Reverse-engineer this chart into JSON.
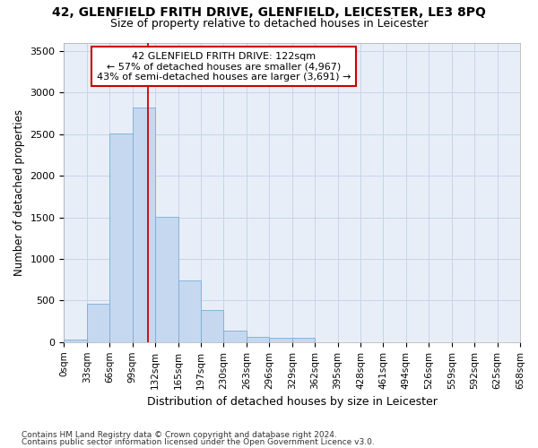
{
  "title": "42, GLENFIELD FRITH DRIVE, GLENFIELD, LEICESTER, LE3 8PQ",
  "subtitle": "Size of property relative to detached houses in Leicester",
  "xlabel": "Distribution of detached houses by size in Leicester",
  "ylabel": "Number of detached properties",
  "footnote1": "Contains HM Land Registry data © Crown copyright and database right 2024.",
  "footnote2": "Contains public sector information licensed under the Open Government Licence v3.0.",
  "bin_labels": [
    "0sqm",
    "33sqm",
    "66sqm",
    "99sqm",
    "132sqm",
    "165sqm",
    "197sqm",
    "230sqm",
    "263sqm",
    "296sqm",
    "329sqm",
    "362sqm",
    "395sqm",
    "428sqm",
    "461sqm",
    "494sqm",
    "526sqm",
    "559sqm",
    "592sqm",
    "625sqm",
    "658sqm"
  ],
  "bar_values": [
    25,
    465,
    2505,
    2820,
    1510,
    745,
    390,
    135,
    65,
    50,
    50,
    0,
    0,
    0,
    0,
    0,
    0,
    0,
    0,
    0
  ],
  "bar_color": "#c5d8f0",
  "bar_edge_color": "#7aadd4",
  "grid_color": "#c8d4e8",
  "background_color": "#e8eef8",
  "vline_color": "#cc0000",
  "vline_position": 3.7,
  "property_label": "42 GLENFIELD FRITH DRIVE: 122sqm",
  "annotation_line1": "← 57% of detached houses are smaller (4,967)",
  "annotation_line2": "43% of semi-detached houses are larger (3,691) →",
  "ylim": [
    0,
    3600
  ],
  "yticks": [
    0,
    500,
    1000,
    1500,
    2000,
    2500,
    3000,
    3500
  ]
}
